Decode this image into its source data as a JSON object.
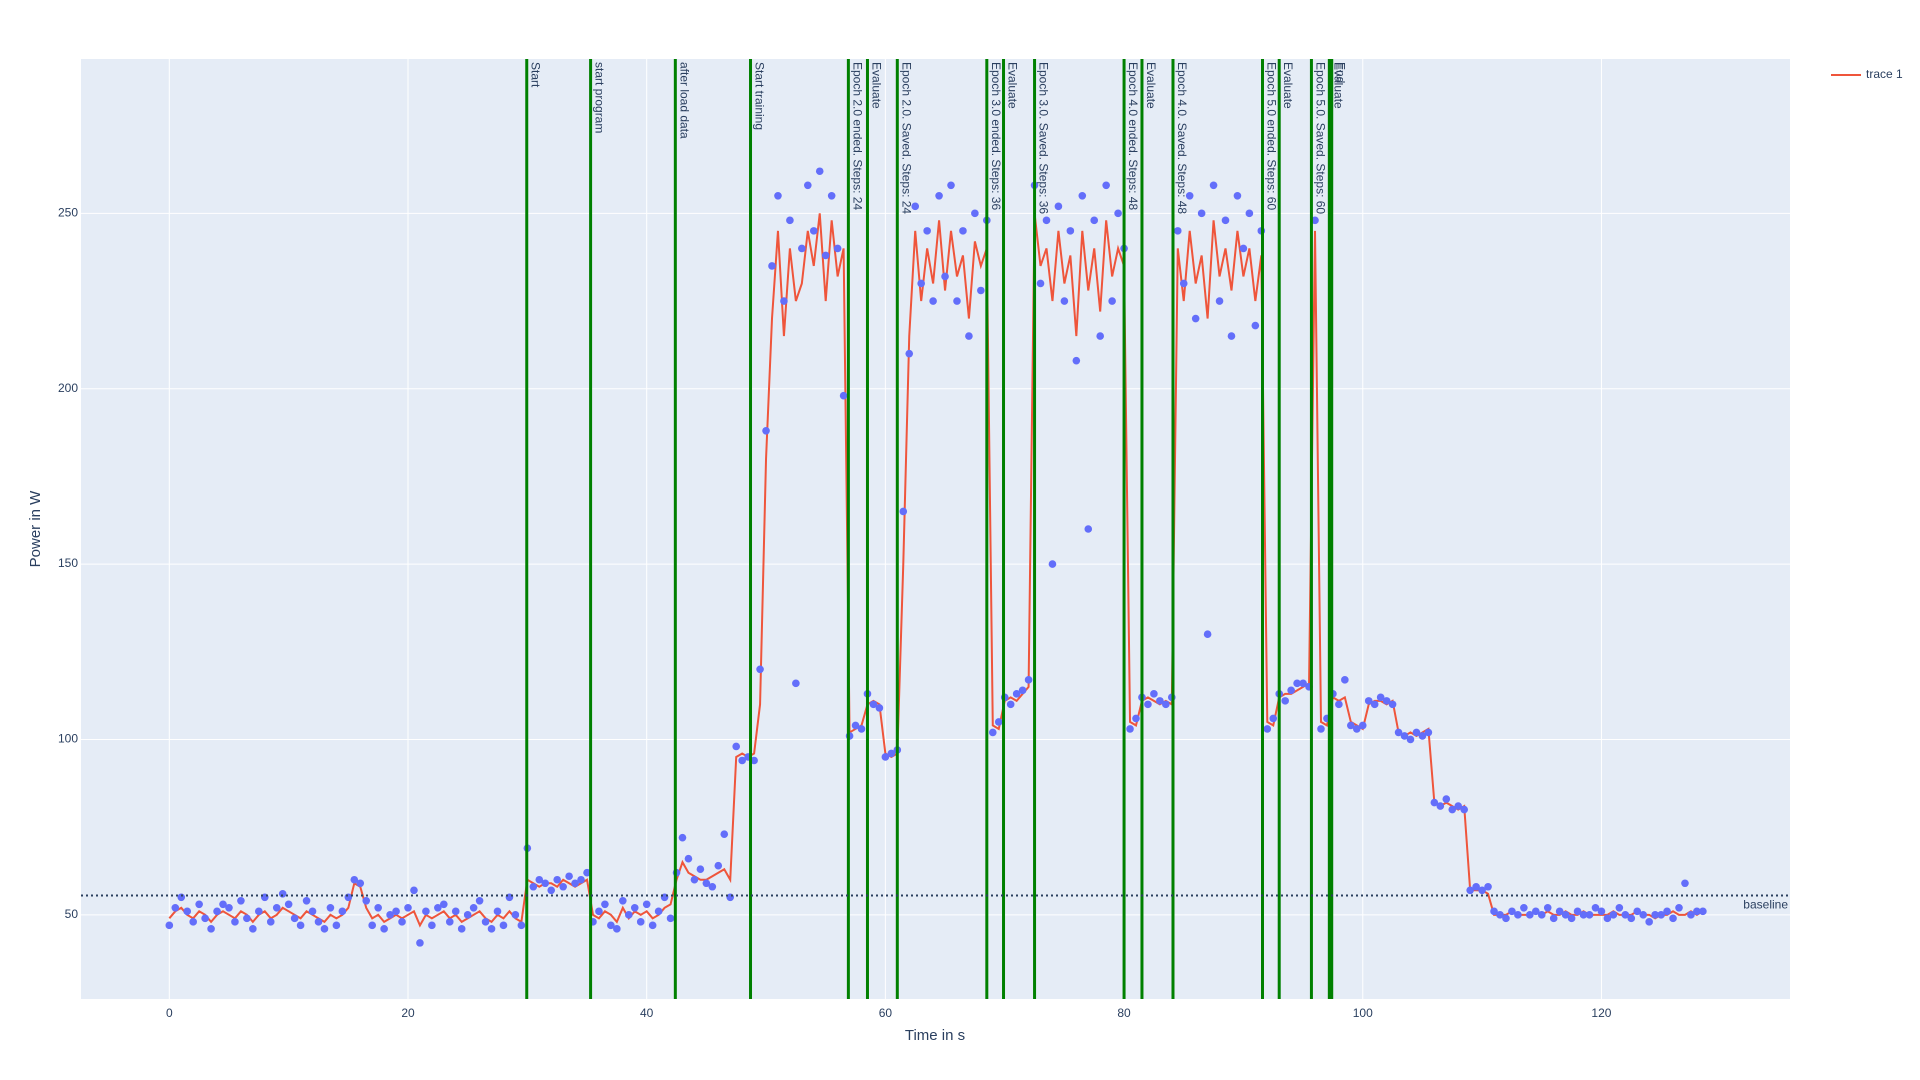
{
  "chart_data": {
    "type": "scatter",
    "xlabel": "Time in s",
    "ylabel": "Power in W",
    "xlim": [
      -7.4,
      135.8
    ],
    "ylim": [
      26,
      294
    ],
    "xticks": [
      0,
      20,
      40,
      60,
      80,
      100,
      120
    ],
    "yticks": [
      50,
      100,
      150,
      200,
      250
    ],
    "grid": true,
    "legend": "top-right",
    "vline_color": "#008000",
    "x": [
      0,
      0.5,
      1,
      1.5,
      2,
      2.5,
      3,
      3.5,
      4,
      4.5,
      5,
      5.5,
      6,
      6.5,
      7,
      7.5,
      8,
      8.5,
      9,
      9.5,
      10,
      10.5,
      11,
      11.5,
      12,
      12.5,
      13,
      13.5,
      14,
      14.5,
      15,
      15.5,
      16,
      16.5,
      17,
      17.5,
      18,
      18.5,
      19,
      19.5,
      20,
      20.5,
      21,
      21.5,
      22,
      22.5,
      23,
      23.5,
      24,
      24.5,
      25,
      25.5,
      26,
      26.5,
      27,
      27.5,
      28,
      28.5,
      29,
      29.5,
      30,
      30.5,
      31,
      31.5,
      32,
      32.5,
      33,
      33.5,
      34,
      34.5,
      35,
      35.5,
      36,
      36.5,
      37,
      37.5,
      38,
      38.5,
      39,
      39.5,
      40,
      40.5,
      41,
      41.5,
      42,
      42.5,
      43,
      43.5,
      44,
      44.5,
      45,
      45.5,
      46,
      46.5,
      47,
      47.5,
      48,
      48.5,
      49,
      49.5,
      50,
      50.5,
      51,
      51.5,
      52,
      52.5,
      53,
      53.5,
      54,
      54.5,
      55,
      55.5,
      56,
      56.5,
      57,
      57.5,
      58,
      58.5,
      59,
      59.5,
      60,
      60.5,
      61,
      61.5,
      62,
      62.5,
      63,
      63.5,
      64,
      64.5,
      65,
      65.5,
      66,
      66.5,
      67,
      67.5,
      68,
      68.5,
      69,
      69.5,
      70,
      70.5,
      71,
      71.5,
      72,
      72.5,
      73,
      73.5,
      74,
      74.5,
      75,
      75.5,
      76,
      76.5,
      77,
      77.5,
      78,
      78.5,
      79,
      79.5,
      80,
      80.5,
      81,
      81.5,
      82,
      82.5,
      83,
      83.5,
      84,
      84.5,
      85,
      85.5,
      86,
      86.5,
      87,
      87.5,
      88,
      88.5,
      89,
      89.5,
      90,
      90.5,
      91,
      91.5,
      92,
      92.5,
      93,
      93.5,
      94,
      94.5,
      95,
      95.5,
      96,
      96.5,
      97,
      97.5,
      98,
      98.5,
      99,
      99.5,
      100,
      100.5,
      101,
      101.5,
      102,
      102.5,
      103,
      103.5,
      104,
      104.5,
      105,
      105.5,
      106,
      106.5,
      107,
      107.5,
      108,
      108.5,
      109,
      109.5,
      110,
      110.5,
      111,
      111.5,
      112,
      112.5,
      113,
      113.5,
      114,
      114.5,
      115,
      115.5,
      116,
      116.5,
      117,
      117.5,
      118,
      118.5,
      119,
      119.5,
      120,
      120.5,
      121,
      121.5,
      122,
      122.5,
      123,
      123.5,
      124,
      124.5,
      125,
      125.5,
      126,
      126.5,
      127,
      127.5,
      128,
      128.5
    ],
    "series": [
      {
        "name": "trace 1",
        "mode": "lines",
        "color": "#ef553b",
        "values": [
          49,
          51,
          52,
          50,
          49,
          51,
          50,
          48,
          50,
          51,
          50,
          49,
          51,
          50,
          48,
          50,
          51,
          49,
          50,
          52,
          51,
          50,
          49,
          51,
          50,
          49,
          48,
          50,
          49,
          50,
          52,
          59,
          58,
          52,
          49,
          50,
          48,
          49,
          50,
          49,
          50,
          51,
          47,
          50,
          49,
          50,
          51,
          49,
          50,
          48,
          49,
          50,
          51,
          49,
          48,
          50,
          49,
          51,
          49,
          48,
          60,
          59,
          58,
          59,
          59,
          58,
          60,
          59,
          58,
          59,
          60,
          50,
          49,
          51,
          50,
          48,
          52,
          49,
          51,
          50,
          51,
          49,
          50,
          52,
          53,
          60,
          65,
          62,
          61,
          60,
          60,
          61,
          62,
          63,
          60,
          95,
          96,
          95,
          96,
          110,
          180,
          220,
          245,
          215,
          240,
          225,
          230,
          245,
          235,
          250,
          225,
          248,
          232,
          240,
          102,
          103,
          104,
          110,
          111,
          110,
          96,
          95,
          96,
          150,
          215,
          245,
          225,
          240,
          230,
          248,
          228,
          245,
          232,
          238,
          220,
          242,
          235,
          240,
          104,
          103,
          111,
          112,
          111,
          113,
          115,
          250,
          235,
          240,
          225,
          245,
          230,
          238,
          215,
          245,
          228,
          240,
          222,
          248,
          232,
          240,
          235,
          105,
          104,
          111,
          112,
          111,
          110,
          111,
          110,
          240,
          225,
          245,
          230,
          238,
          220,
          248,
          232,
          240,
          228,
          245,
          232,
          240,
          225,
          238,
          105,
          104,
          112,
          113,
          113,
          114,
          115,
          116,
          245,
          105,
          104,
          112,
          111,
          112,
          105,
          104,
          103,
          110,
          111,
          111,
          110,
          111,
          102,
          101,
          102,
          101,
          102,
          103,
          82,
          81,
          82,
          81,
          80,
          81,
          57,
          57,
          57,
          56,
          50,
          50,
          50,
          51,
          50,
          50,
          50,
          51,
          50,
          51,
          50,
          50,
          51,
          50,
          50,
          51,
          50,
          50,
          50,
          50,
          51,
          50,
          50,
          50,
          51,
          50,
          50,
          49,
          50,
          50,
          51,
          50,
          50,
          51,
          50,
          51
        ]
      },
      {
        "mode": "markers",
        "color": "#636efa",
        "values": [
          47,
          52,
          55,
          51,
          48,
          53,
          49,
          46,
          51,
          53,
          52,
          48,
          54,
          49,
          46,
          51,
          55,
          48,
          52,
          56,
          53,
          49,
          47,
          54,
          51,
          48,
          46,
          52,
          47,
          51,
          55,
          60,
          59,
          54,
          47,
          52,
          46,
          50,
          51,
          48,
          52,
          57,
          42,
          51,
          47,
          52,
          53,
          48,
          51,
          46,
          50,
          52,
          54,
          48,
          46,
          51,
          47,
          55,
          50,
          47,
          69,
          58,
          60,
          59,
          57,
          60,
          58,
          61,
          59,
          60,
          62,
          48,
          51,
          53,
          47,
          46,
          54,
          50,
          52,
          48,
          53,
          47,
          51,
          55,
          49,
          62,
          72,
          66,
          60,
          63,
          59,
          58,
          64,
          73,
          55,
          98,
          94,
          95,
          94,
          120,
          188,
          235,
          255,
          225,
          248,
          116,
          240,
          258,
          245,
          262,
          238,
          255,
          240,
          198,
          101,
          104,
          103,
          113,
          110,
          109,
          95,
          96,
          97,
          165,
          210,
          252,
          230,
          245,
          225,
          255,
          232,
          258,
          225,
          245,
          215,
          250,
          228,
          248,
          102,
          105,
          112,
          110,
          113,
          114,
          117,
          258,
          230,
          248,
          150,
          252,
          225,
          245,
          208,
          255,
          160,
          248,
          215,
          258,
          225,
          250,
          240,
          103,
          106,
          112,
          110,
          113,
          111,
          110,
          112,
          245,
          230,
          255,
          220,
          250,
          130,
          258,
          225,
          248,
          215,
          255,
          240,
          250,
          218,
          245,
          103,
          106,
          113,
          111,
          114,
          116,
          116,
          115,
          248,
          103,
          106,
          113,
          110,
          117,
          104,
          103,
          104,
          111,
          110,
          112,
          111,
          110,
          102,
          101,
          100,
          102,
          101,
          102,
          82,
          81,
          83,
          80,
          81,
          80,
          57,
          58,
          57,
          58,
          51,
          50,
          49,
          51,
          50,
          52,
          50,
          51,
          50,
          52,
          49,
          51,
          50,
          49,
          51,
          50,
          50,
          52,
          51,
          49,
          50,
          52,
          50,
          49,
          51,
          50,
          48,
          50,
          50,
          51,
          49,
          52,
          59,
          50,
          51,
          51
        ]
      }
    ],
    "vlines": [
      {
        "x": 29.95,
        "label": "Start"
      },
      {
        "x": 35.3,
        "label": "start program"
      },
      {
        "x": 42.4,
        "label": "after load data"
      },
      {
        "x": 48.7,
        "label": "Start training"
      },
      {
        "x": 56.9,
        "label": "Epoch 2.0 ended. Steps: 24"
      },
      {
        "x": 58.5,
        "label": "Evaluate"
      },
      {
        "x": 61.0,
        "label": "Epoch 2.0. Saved. Steps: 24"
      },
      {
        "x": 68.5,
        "label": "Epoch 3.0 ended. Steps: 36"
      },
      {
        "x": 69.9,
        "label": "Evaluate"
      },
      {
        "x": 72.5,
        "label": "Epoch 3.0. Saved. Steps: 36"
      },
      {
        "x": 80.0,
        "label": "Epoch 4.0 ended. Steps: 48"
      },
      {
        "x": 81.5,
        "label": "Evaluate"
      },
      {
        "x": 84.1,
        "label": "Epoch 4.0. Saved. Steps: 48"
      },
      {
        "x": 91.6,
        "label": "Epoch 5.0 ended. Steps: 60"
      },
      {
        "x": 93.0,
        "label": "Evaluate"
      },
      {
        "x": 95.7,
        "label": "Epoch 5.0. Saved. Steps: 60"
      },
      {
        "x": 97.2,
        "label": "Evaluate"
      },
      {
        "x": 97.4,
        "label": "End"
      }
    ],
    "hline": {
      "y": 55.5,
      "label": "baseline"
    }
  }
}
